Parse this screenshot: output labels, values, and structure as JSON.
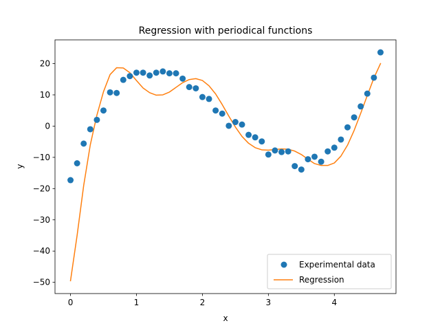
{
  "chart_data": {
    "type": "scatter",
    "title": "Regression with periodical functions",
    "xlabel": "x",
    "ylabel": "y",
    "xlim": [
      -0.235,
      4.935
    ],
    "ylim": [
      -53.6,
      27.6
    ],
    "xticks": [
      0,
      1,
      2,
      3,
      4
    ],
    "xtick_labels": [
      "0",
      "1",
      "2",
      "3",
      "4"
    ],
    "yticks": [
      -50,
      -40,
      -30,
      -20,
      -10,
      0,
      10,
      20
    ],
    "ytick_labels": [
      "−50",
      "−40",
      "−30",
      "−20",
      "−10",
      "0",
      "10",
      "20"
    ],
    "grid": false,
    "legend_position": "lower-right",
    "series": [
      {
        "name": "Experimental data",
        "kind": "scatter",
        "color": "#1f77b4",
        "x": [
          0.0,
          0.1,
          0.2,
          0.3,
          0.4,
          0.5,
          0.6,
          0.7,
          0.8,
          0.9,
          1.0,
          1.1,
          1.2,
          1.3,
          1.4,
          1.5,
          1.6,
          1.7,
          1.8,
          1.9,
          2.0,
          2.1,
          2.2,
          2.3,
          2.4,
          2.5,
          2.6,
          2.7,
          2.8,
          2.9,
          3.0,
          3.1,
          3.2,
          3.3,
          3.4,
          3.5,
          3.6,
          3.7,
          3.8,
          3.9,
          4.0,
          4.1,
          4.2,
          4.3,
          4.4,
          4.5,
          4.6,
          4.7
        ],
        "y": [
          -17.3,
          -11.9,
          -5.6,
          -1.0,
          2.0,
          5.0,
          10.8,
          10.6,
          14.8,
          16.0,
          17.1,
          17.1,
          16.2,
          17.1,
          17.5,
          16.9,
          16.9,
          15.2,
          12.5,
          12.1,
          9.3,
          8.7,
          5.0,
          4.0,
          0.1,
          1.3,
          0.5,
          -2.8,
          -3.6,
          -4.9,
          -9.1,
          -7.8,
          -8.3,
          -8.1,
          -12.8,
          -13.9,
          -10.6,
          -9.8,
          -11.4,
          -8.1,
          -6.9,
          -4.3,
          -0.4,
          2.8,
          6.3,
          10.4,
          15.5,
          23.6
        ]
      },
      {
        "name": "Regression",
        "kind": "line",
        "color": "#ff7f0e",
        "x": [
          0.0,
          0.1,
          0.2,
          0.3,
          0.4,
          0.5,
          0.6,
          0.7,
          0.8,
          0.9,
          1.0,
          1.1,
          1.2,
          1.3,
          1.4,
          1.5,
          1.6,
          1.7,
          1.8,
          1.9,
          2.0,
          2.1,
          2.2,
          2.3,
          2.4,
          2.5,
          2.6,
          2.7,
          2.8,
          2.9,
          3.0,
          3.1,
          3.2,
          3.3,
          3.4,
          3.5,
          3.6,
          3.7,
          3.8,
          3.9,
          4.0,
          4.1,
          4.2,
          4.3,
          4.4,
          4.5,
          4.6,
          4.7
        ],
        "y": [
          -49.5,
          -35.0,
          -19.0,
          -6.0,
          3.5,
          11.0,
          16.5,
          18.7,
          18.6,
          17.1,
          14.6,
          12.2,
          10.7,
          9.9,
          10.0,
          10.9,
          12.4,
          13.9,
          14.9,
          15.2,
          14.6,
          12.9,
          10.3,
          6.9,
          3.2,
          -0.3,
          -3.3,
          -5.5,
          -6.9,
          -7.6,
          -7.7,
          -7.5,
          -7.3,
          -7.4,
          -8.0,
          -9.1,
          -10.6,
          -12.0,
          -12.6,
          -12.6,
          -11.8,
          -9.6,
          -6.1,
          -1.4,
          4.1,
          9.8,
          15.4,
          20.0
        ]
      }
    ]
  }
}
